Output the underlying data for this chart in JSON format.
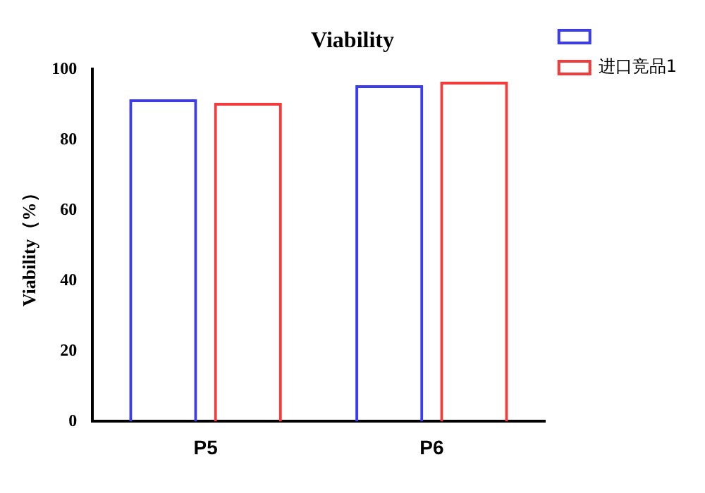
{
  "chart_data": {
    "type": "bar",
    "title": "Viability",
    "ylabel": "Viability（%）",
    "categories": [
      "P5",
      "P6"
    ],
    "series": [
      {
        "color": "#3b3bf2",
        "values": [
          91.5,
          95.5
        ]
      },
      {
        "name": "进口竞品1",
        "color": "#f23b3b",
        "values": [
          90.5,
          96.5
        ]
      }
    ],
    "ylim": [
      0,
      100
    ],
    "yticks": [
      0,
      20,
      40,
      60,
      80,
      100
    ],
    "grid": false,
    "legend": "top right"
  }
}
